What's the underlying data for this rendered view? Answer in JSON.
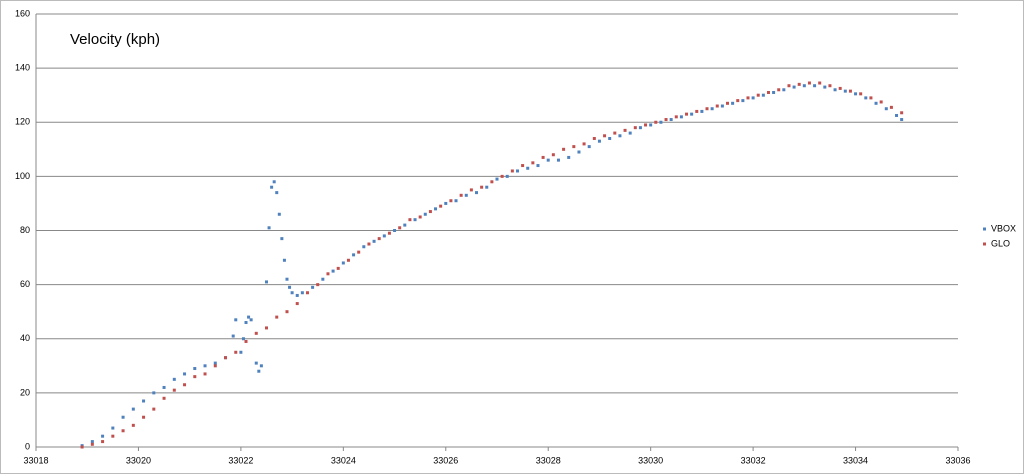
{
  "chart_data": {
    "type": "scatter",
    "title": "Velocity (kph)",
    "xlim": [
      33018,
      33036
    ],
    "xticks": [
      33018,
      33020,
      33022,
      33024,
      33026,
      33028,
      33030,
      33032,
      33034,
      33036
    ],
    "ylim": [
      0,
      160
    ],
    "yticks": [
      0,
      20,
      40,
      60,
      80,
      100,
      120,
      140,
      160
    ],
    "grid": true,
    "legend": "right",
    "series": [
      {
        "name": "VBOX",
        "color": "#4f81bd",
        "x": [
          33018.9,
          33019.1,
          33019.3,
          33019.5,
          33019.7,
          33019.9,
          33020.1,
          33020.3,
          33020.5,
          33020.7,
          33020.9,
          33021.1,
          33021.3,
          33021.5,
          33021.7,
          33021.85,
          33021.9,
          33022.0,
          33022.05,
          33022.1,
          33022.15,
          33022.2,
          33022.3,
          33022.35,
          33022.4,
          33022.5,
          33022.55,
          33022.6,
          33022.65,
          33022.7,
          33022.75,
          33022.8,
          33022.85,
          33022.9,
          33022.95,
          33023.0,
          33023.1,
          33023.2,
          33023.4,
          33023.6,
          33023.8,
          33024.0,
          33024.2,
          33024.4,
          33024.6,
          33024.8,
          33025.0,
          33025.2,
          33025.4,
          33025.6,
          33025.8,
          33026.0,
          33026.2,
          33026.4,
          33026.6,
          33026.8,
          33027.0,
          33027.2,
          33027.4,
          33027.6,
          33027.8,
          33028.0,
          33028.2,
          33028.4,
          33028.6,
          33028.8,
          33029.0,
          33029.2,
          33029.4,
          33029.6,
          33029.8,
          33030.0,
          33030.2,
          33030.4,
          33030.6,
          33030.8,
          33031.0,
          33031.2,
          33031.4,
          33031.6,
          33031.8,
          33032.0,
          33032.2,
          33032.4,
          33032.6,
          33032.8,
          33033.0,
          33033.2,
          33033.4,
          33033.6,
          33033.8,
          33034.0,
          33034.2,
          33034.4,
          33034.6,
          33034.8,
          33034.9
        ],
        "values": [
          0.5,
          2,
          4,
          7,
          11,
          14,
          17,
          20,
          22,
          25,
          27,
          29,
          30,
          31,
          33,
          41,
          47,
          35,
          40,
          46,
          48,
          47,
          31,
          28,
          30,
          61,
          81,
          96,
          98,
          94,
          86,
          77,
          69,
          62,
          59,
          57,
          56,
          57,
          59,
          62,
          65,
          68,
          71,
          74,
          76,
          78,
          80,
          82,
          84,
          86,
          88,
          90,
          91,
          93,
          94,
          96,
          99,
          100,
          102,
          103,
          104,
          106,
          106,
          107,
          109,
          111,
          113,
          114,
          115,
          116,
          118,
          119,
          120,
          121,
          122,
          123,
          124,
          125,
          126,
          127,
          128,
          129,
          130,
          131,
          132,
          133,
          133.5,
          133.5,
          133,
          132,
          131.5,
          130.5,
          129,
          127,
          125,
          122.5,
          121
        ]
      },
      {
        "name": "GLO",
        "color": "#c0504d",
        "x": [
          33018.9,
          33019.1,
          33019.3,
          33019.5,
          33019.7,
          33019.9,
          33020.1,
          33020.3,
          33020.5,
          33020.7,
          33020.9,
          33021.1,
          33021.3,
          33021.5,
          33021.7,
          33021.9,
          33022.1,
          33022.3,
          33022.5,
          33022.7,
          33022.9,
          33023.1,
          33023.3,
          33023.5,
          33023.7,
          33023.9,
          33024.1,
          33024.3,
          33024.5,
          33024.7,
          33024.9,
          33025.1,
          33025.3,
          33025.5,
          33025.7,
          33025.9,
          33026.1,
          33026.3,
          33026.5,
          33026.7,
          33026.9,
          33027.1,
          33027.3,
          33027.5,
          33027.7,
          33027.9,
          33028.1,
          33028.3,
          33028.5,
          33028.7,
          33028.9,
          33029.1,
          33029.3,
          33029.5,
          33029.7,
          33029.9,
          33030.1,
          33030.3,
          33030.5,
          33030.7,
          33030.9,
          33031.1,
          33031.3,
          33031.5,
          33031.7,
          33031.9,
          33032.1,
          33032.3,
          33032.5,
          33032.7,
          33032.9,
          33033.1,
          33033.3,
          33033.5,
          33033.7,
          33033.9,
          33034.1,
          33034.3,
          33034.5,
          33034.7,
          33034.9
        ],
        "values": [
          0,
          1,
          2,
          4,
          6,
          8,
          11,
          14,
          18,
          21,
          23,
          26,
          27,
          30,
          33,
          35,
          39,
          42,
          44,
          48,
          50,
          53,
          57,
          60,
          64,
          66,
          69,
          72,
          75,
          77,
          79,
          81,
          84,
          85,
          87,
          89,
          91,
          93,
          95,
          96,
          98,
          100,
          102,
          104,
          105,
          107,
          108,
          110,
          111,
          112,
          114,
          115,
          116,
          117,
          118,
          119,
          120,
          121,
          122,
          123,
          124,
          125,
          126,
          127,
          128,
          129,
          130,
          131,
          132,
          133.5,
          134,
          134.5,
          134.5,
          133.5,
          132.5,
          131.5,
          130.5,
          129,
          127.5,
          125.5,
          123.5
        ]
      }
    ]
  }
}
